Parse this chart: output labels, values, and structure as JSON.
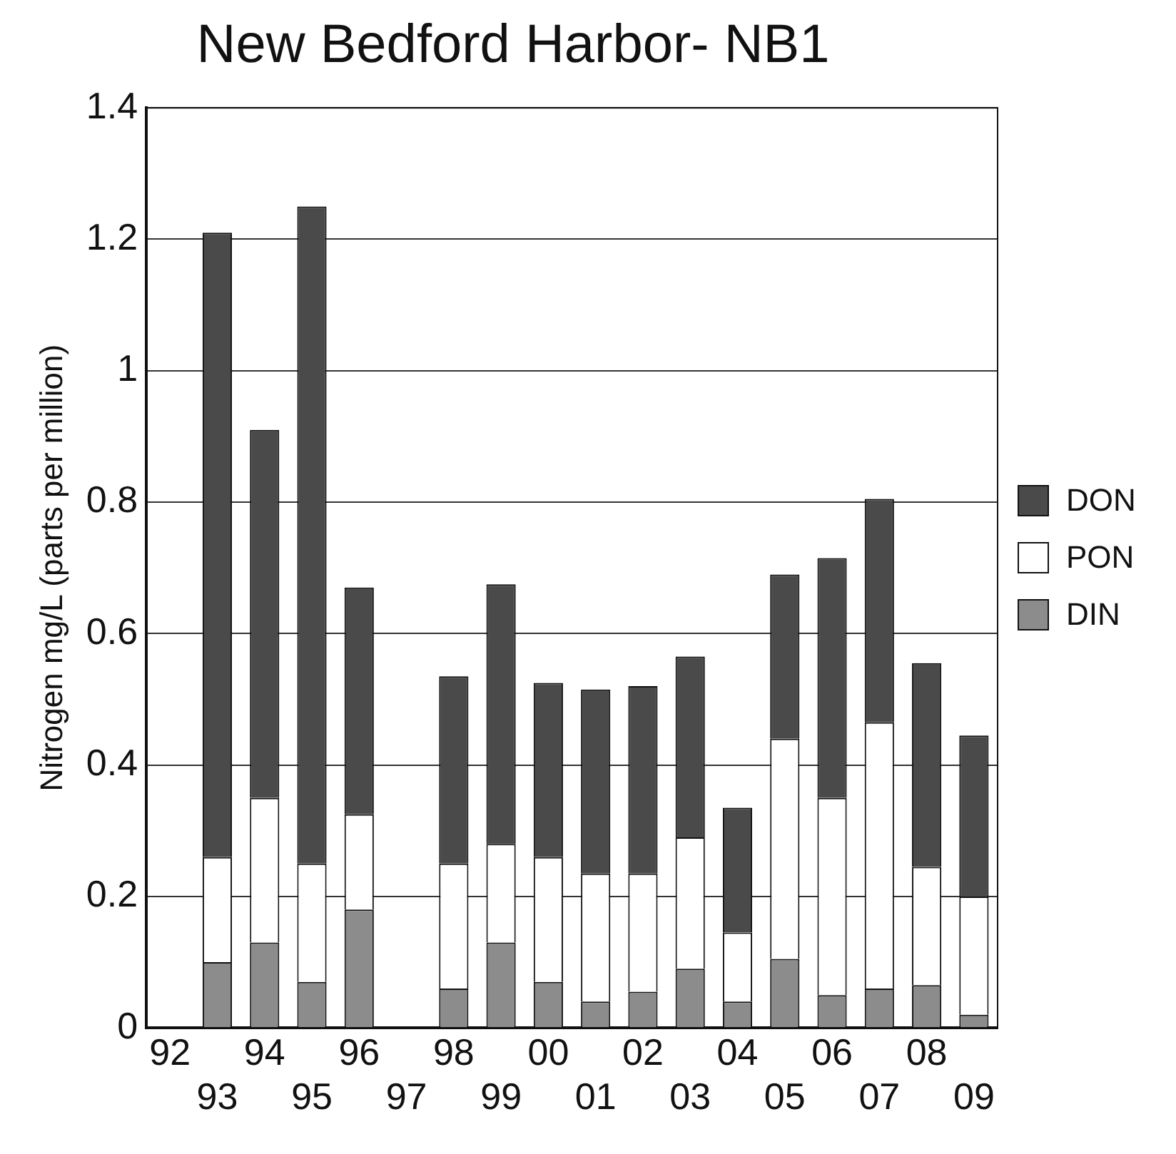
{
  "chart_data": {
    "type": "bar",
    "title": "New Bedford Harbor- NB1",
    "ylabel": "Nitrogen mg/L (parts per million)",
    "categories": [
      "92",
      "93",
      "94",
      "95",
      "96",
      "97",
      "98",
      "99",
      "00",
      "01",
      "02",
      "03",
      "04",
      "05",
      "06",
      "07",
      "08",
      "09"
    ],
    "stacked": true,
    "ylim": [
      0,
      1.4
    ],
    "yticks": [
      0,
      0.2,
      0.4,
      0.6,
      0.8,
      1,
      1.2,
      1.4
    ],
    "grid": "y",
    "legend": "right",
    "series": [
      {
        "name": "DIN",
        "color": "#8c8c8c",
        "values": [
          null,
          0.1,
          0.13,
          0.07,
          0.18,
          null,
          0.06,
          0.13,
          0.07,
          0.04,
          0.055,
          0.09,
          0.04,
          0.105,
          0.05,
          0.06,
          0.065,
          0.02
        ]
      },
      {
        "name": "PON",
        "color": "#ffffff",
        "values": [
          null,
          0.16,
          0.22,
          0.18,
          0.145,
          null,
          0.19,
          0.15,
          0.19,
          0.195,
          0.18,
          0.2,
          0.105,
          0.335,
          0.3,
          0.405,
          0.18,
          0.18
        ]
      },
      {
        "name": "DON",
        "color": "#4a4a4a",
        "values": [
          null,
          0.95,
          0.56,
          1.0,
          0.345,
          null,
          0.285,
          0.395,
          0.265,
          0.28,
          0.285,
          0.275,
          0.19,
          0.25,
          0.365,
          0.34,
          0.31,
          0.245
        ]
      }
    ]
  }
}
